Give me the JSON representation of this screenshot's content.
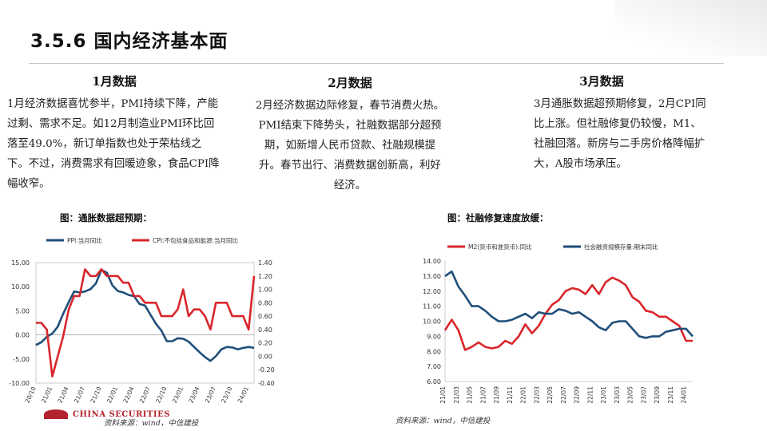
{
  "slide": {
    "title": "3.5.6 国内经济基本面"
  },
  "columns": [
    {
      "heading": "1月数据",
      "body": "1月经济数据喜忧参半，PMI持续下降，产能过剩、需求不足。如12月制造业PMI环比回落至49.0%，新订单指数也处于荣枯线之下。不过，消费需求有回暖迹象，食品CPI降幅收窄。"
    },
    {
      "heading": "2月数据",
      "body": "2月经济数据边际修复，春节消费火热。PMI结束下降势头，社融数据部分超预期，如新增人民币贷款、社融规模提升。春节出行、消费数据创新高，利好经济。"
    },
    {
      "heading": "3月数据",
      "body": "3月通胀数据超预期修复，2月CPI同比上涨。但社融修复仍较慢，M1、社融回落。新房与二手房价格降幅扩大，A股市场承压。"
    }
  ],
  "charts": {
    "left": {
      "title": "图：通胀数据超预期：",
      "source": "资料来源：wind，中信建投"
    },
    "right": {
      "title": "图：社融修复速度放缓：",
      "source": "资料来源：wind，中信建投"
    }
  },
  "logo": {
    "text": "CHINA SECURITIES"
  },
  "chart_data": [
    {
      "type": "line",
      "title": "图：通胀数据超预期：",
      "x": [
        "20/10",
        "20/11",
        "20/12",
        "21/01",
        "21/02",
        "21/03",
        "21/04",
        "21/05",
        "21/06",
        "21/07",
        "21/08",
        "21/09",
        "21/10",
        "21/11",
        "21/12",
        "22/01",
        "22/02",
        "22/03",
        "22/04",
        "22/05",
        "22/06",
        "22/07",
        "22/08",
        "22/09",
        "22/10",
        "22/11",
        "22/12",
        "23/01",
        "23/02",
        "23/03",
        "23/04",
        "23/05",
        "23/06",
        "23/07",
        "23/08",
        "23/09",
        "23/10",
        "23/11",
        "23/12",
        "24/01",
        "24/02"
      ],
      "x_tick_labels": [
        "20/10",
        "21/01",
        "21/04",
        "21/07",
        "21/10",
        "22/01",
        "22/04",
        "22/07",
        "22/10",
        "23/01",
        "23/04",
        "23/07",
        "23/10",
        "24/01"
      ],
      "series": [
        {
          "name": "PPI:当月同比",
          "axis": "left",
          "color": "#1f4e79",
          "values": [
            -2.1,
            -1.5,
            -0.4,
            0.3,
            1.7,
            4.4,
            6.8,
            9.0,
            8.8,
            9.0,
            9.5,
            10.7,
            13.5,
            12.9,
            10.3,
            9.1,
            8.8,
            8.3,
            8.0,
            6.4,
            6.1,
            4.2,
            2.3,
            0.9,
            -1.3,
            -1.3,
            -0.7,
            -0.8,
            -1.4,
            -2.5,
            -3.6,
            -4.6,
            -5.4,
            -4.4,
            -3.0,
            -2.5,
            -2.6,
            -3.0,
            -2.7,
            -2.5,
            -2.7
          ]
        },
        {
          "name": "CPI:不包括食品和能源:当月同比",
          "axis": "right",
          "color": "#d9262b",
          "values": [
            0.5,
            0.5,
            0.4,
            -0.3,
            0.0,
            0.3,
            0.7,
            0.9,
            0.9,
            1.3,
            1.2,
            1.2,
            1.3,
            1.2,
            1.2,
            1.2,
            1.1,
            1.1,
            0.9,
            0.9,
            0.8,
            0.8,
            0.8,
            0.6,
            0.6,
            0.6,
            0.7,
            1.0,
            0.6,
            0.7,
            0.7,
            0.6,
            0.4,
            0.8,
            0.8,
            0.8,
            0.6,
            0.6,
            0.6,
            0.4,
            1.2
          ]
        }
      ],
      "ylim_left": [
        -10,
        15
      ],
      "yticks_left": [
        "15.00",
        "10.00",
        "5.00",
        "0.00",
        "-5.00",
        "-10.00"
      ],
      "ylim_right": [
        -0.4,
        1.4
      ],
      "yticks_right": [
        "1.40",
        "1.20",
        "1.00",
        "0.80",
        "0.60",
        "0.40",
        "0.20",
        "0.00",
        "-0.20",
        "-0.40"
      ],
      "legend": "top"
    },
    {
      "type": "line",
      "title": "图：社融修复速度放缓：",
      "x": [
        "21/01",
        "21/02",
        "21/03",
        "21/04",
        "21/05",
        "21/06",
        "21/07",
        "21/08",
        "21/09",
        "21/10",
        "21/11",
        "21/12",
        "22/01",
        "22/02",
        "22/03",
        "22/04",
        "22/05",
        "22/06",
        "22/07",
        "22/08",
        "22/09",
        "22/10",
        "22/11",
        "22/12",
        "23/01",
        "23/02",
        "23/03",
        "23/04",
        "23/05",
        "23/06",
        "23/07",
        "23/08",
        "23/09",
        "23/10",
        "23/11",
        "23/12",
        "24/01",
        "24/02"
      ],
      "x_tick_labels": [
        "21/01",
        "21/03",
        "21/05",
        "21/07",
        "21/09",
        "21/11",
        "22/01",
        "22/03",
        "22/05",
        "22/07",
        "22/09",
        "22/11",
        "23/01",
        "23/03",
        "23/05",
        "23/07",
        "23/09",
        "23/11",
        "24/01"
      ],
      "series": [
        {
          "name": "M2(货币和准货币):同比",
          "color": "#d9262b",
          "values": [
            9.4,
            10.1,
            9.4,
            8.1,
            8.3,
            8.6,
            8.3,
            8.2,
            8.3,
            8.7,
            8.5,
            9.0,
            9.8,
            9.2,
            9.7,
            10.5,
            11.1,
            11.4,
            12.0,
            12.2,
            12.1,
            11.8,
            12.4,
            11.8,
            12.6,
            12.9,
            12.7,
            12.4,
            11.6,
            11.3,
            10.7,
            10.6,
            10.3,
            10.3,
            10.0,
            9.7,
            8.7,
            8.7
          ]
        },
        {
          "name": "社会融资规模存量:期末同比",
          "color": "#1f4e79",
          "values": [
            13.0,
            13.3,
            12.3,
            11.7,
            11.0,
            11.0,
            10.7,
            10.3,
            10.0,
            10.0,
            10.1,
            10.3,
            10.5,
            10.2,
            10.6,
            10.5,
            10.5,
            10.8,
            10.7,
            10.5,
            10.6,
            10.3,
            10.0,
            9.6,
            9.4,
            9.9,
            10.0,
            10.0,
            9.5,
            9.0,
            8.9,
            9.0,
            9.0,
            9.3,
            9.4,
            9.5,
            9.5,
            9.0
          ]
        }
      ],
      "ylim": [
        6,
        14
      ],
      "yticks": [
        "14.00",
        "13.00",
        "12.00",
        "11.00",
        "10.00",
        "9.00",
        "8.00",
        "7.00",
        "6.00"
      ],
      "legend": "top"
    }
  ]
}
